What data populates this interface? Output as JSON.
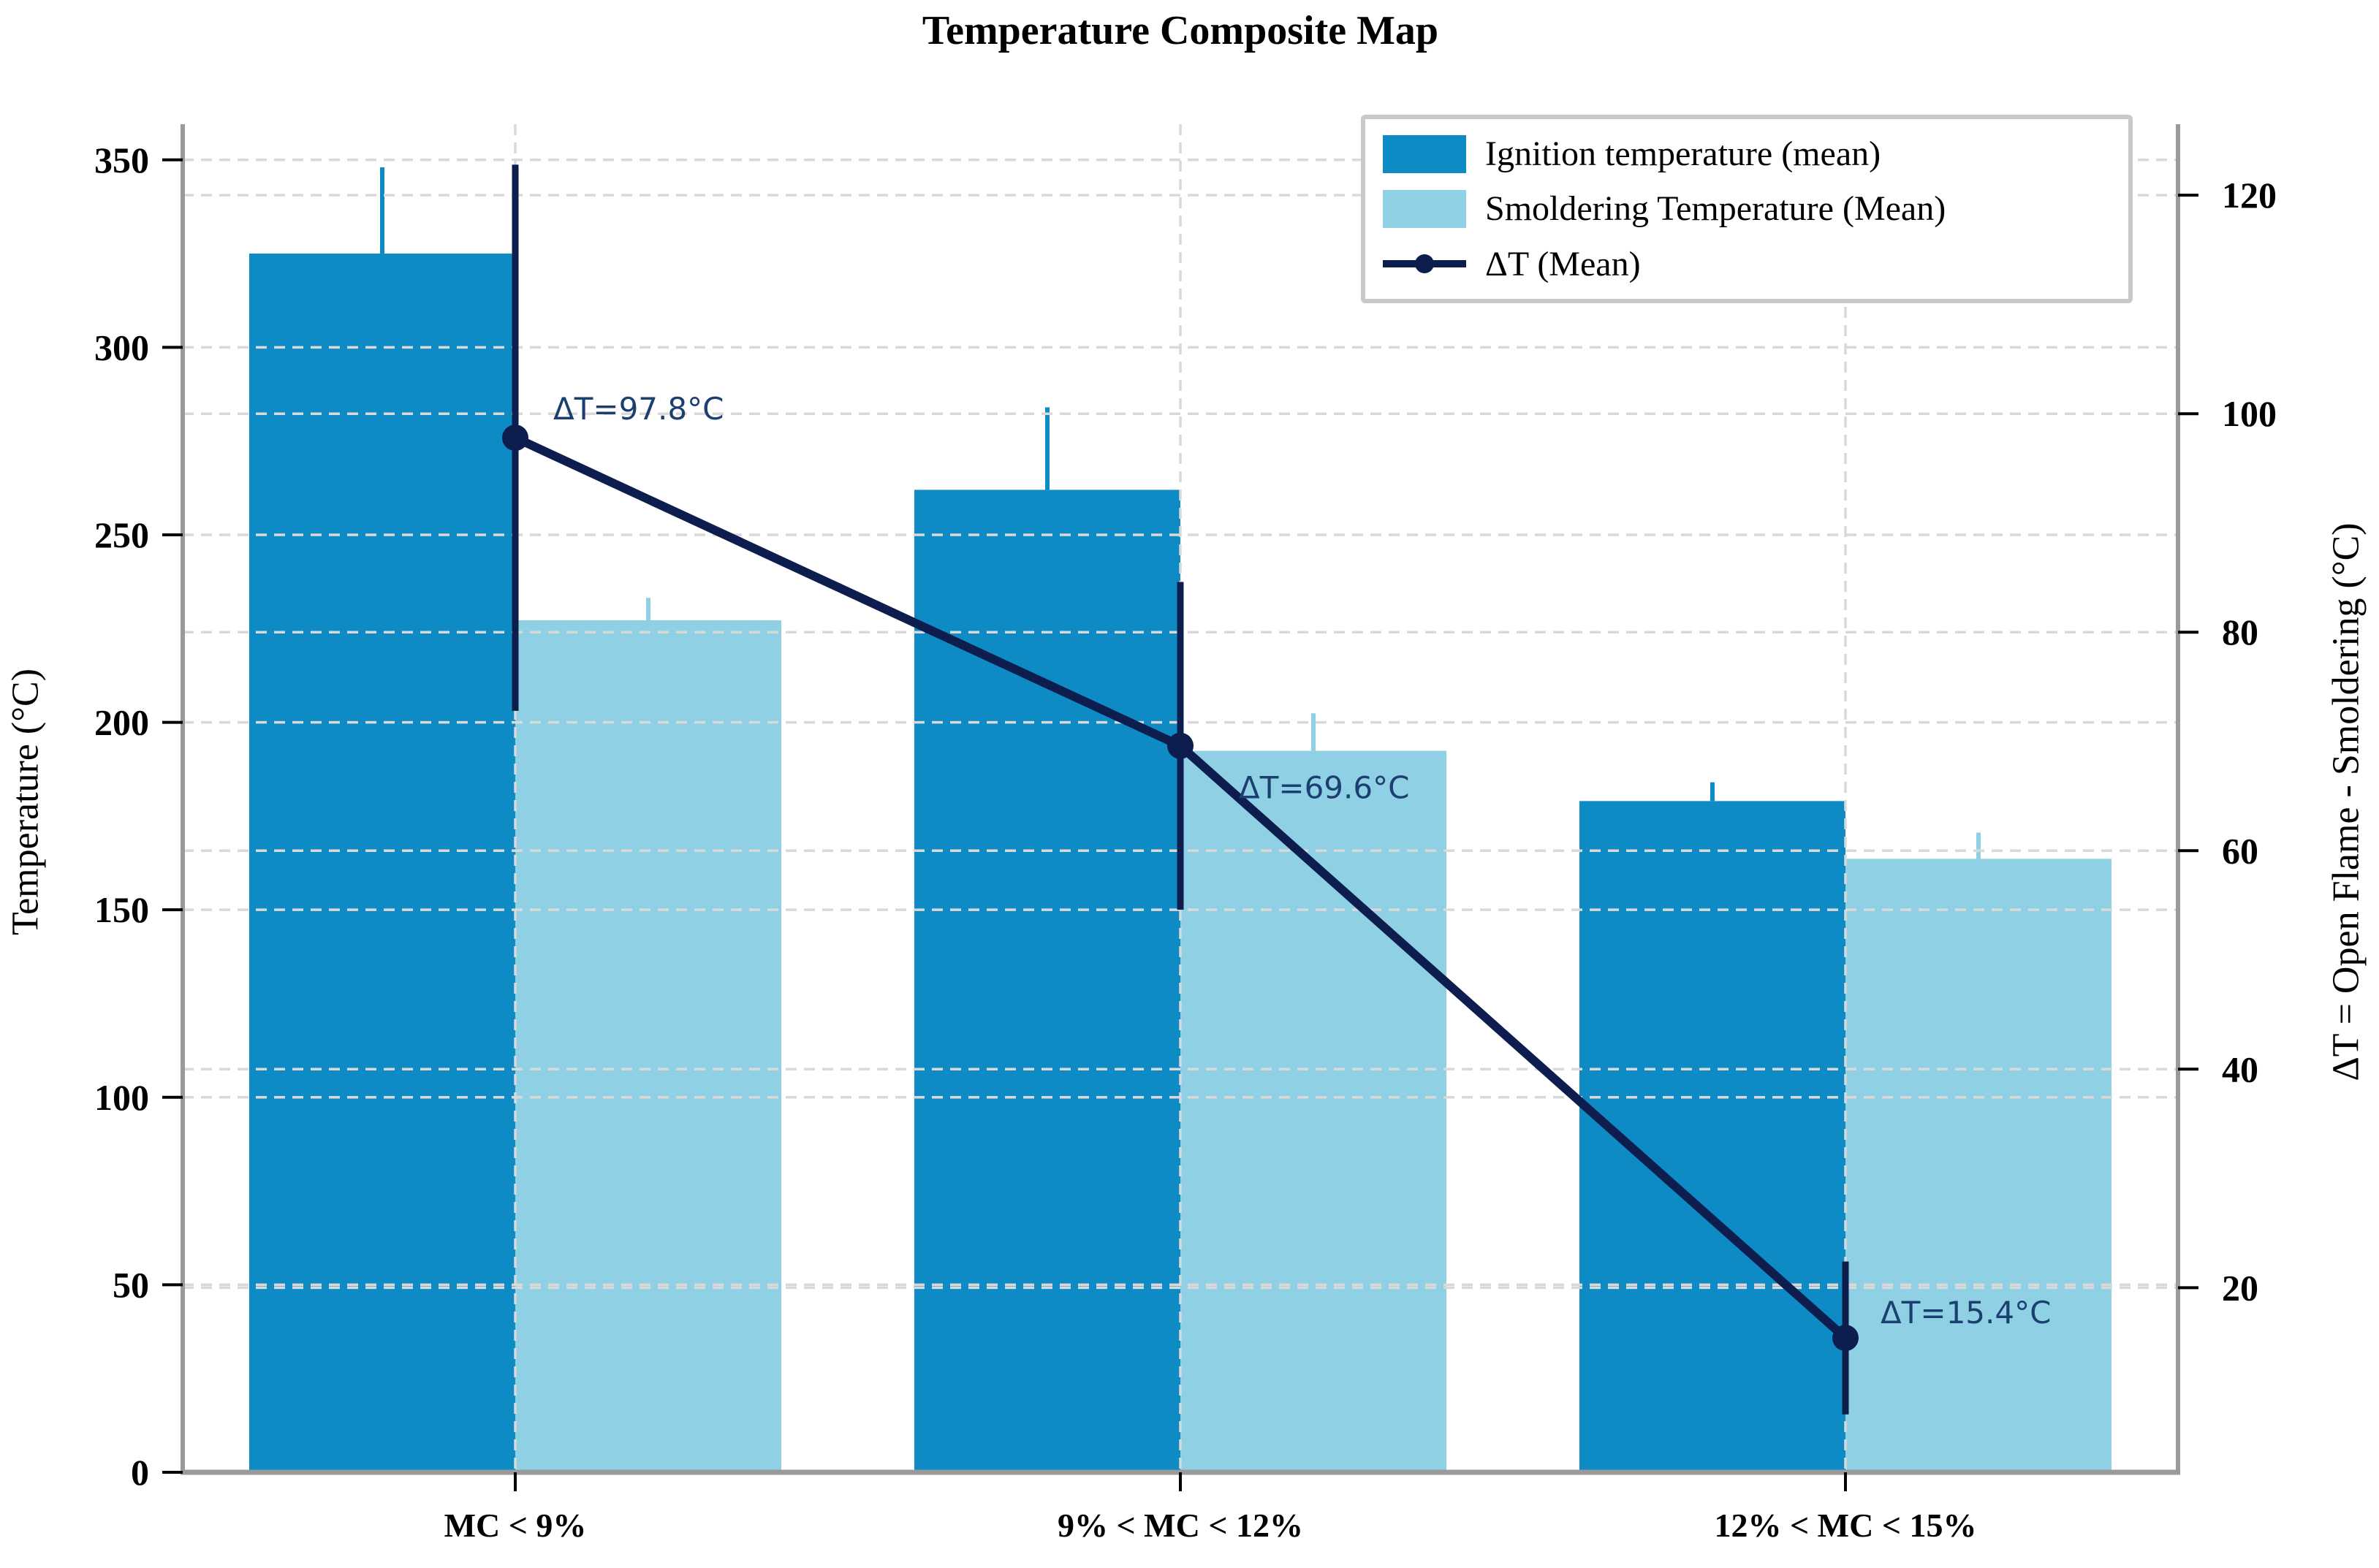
{
  "title": "Temperature Composite Map",
  "colors": {
    "ignition_bar": "#0e8ac4",
    "smoldering_bar": "#8fd0e4",
    "delta_line": "#0d1d4e",
    "annotation_text": "#1c3f72",
    "grid": "#d9d9d9",
    "spine": "#9a9a9a",
    "tick_text": "#000000",
    "legend_border": "#c9c9c9"
  },
  "chart_data": {
    "type": "bar+line composite, dual y-axes",
    "title": "Temperature Composite Map",
    "categories": [
      "MC < 9%",
      "9% < MC < 12%",
      "12% < MC < 15%"
    ],
    "bar_series": [
      {
        "name": "Ignition temperature (mean)",
        "axis": "left",
        "values": [
          325,
          262,
          179
        ],
        "errors_plus": [
          23,
          22,
          5
        ],
        "color": "#0e8ac4"
      },
      {
        "name": "Smoldering Temperature (Mean)",
        "axis": "left",
        "values": [
          227.2,
          192.4,
          163.6
        ],
        "errors_plus": [
          6,
          10,
          7
        ],
        "color": "#8fd0e4"
      }
    ],
    "line_series": {
      "name": "ΔT (Mean)",
      "axis": "right",
      "values": [
        97.8,
        69.6,
        15.4
      ],
      "errors": [
        25,
        15,
        7
      ],
      "color": "#0d1d4e",
      "marker": "circle"
    },
    "annotations": [
      {
        "text": "ΔT=97.8°C"
      },
      {
        "text": "ΔT=69.6°C"
      },
      {
        "text": "ΔT=15.4°C"
      }
    ],
    "left_axis": {
      "label": "Temperature (°C)",
      "ticks": [
        0,
        50,
        100,
        150,
        200,
        250,
        300,
        350
      ],
      "lim": [
        0,
        359.5
      ]
    },
    "right_axis": {
      "label": "ΔT = Open Flame - Smoldering (°C)",
      "ticks": [
        20,
        40,
        60,
        80,
        100,
        120
      ],
      "lim": [
        3.1,
        126.5
      ]
    },
    "grid": {
      "horizontal": "dashed at left-axis and right-axis major ticks",
      "vertical": "dashed at category centers",
      "on": true
    },
    "legend_position": "upper right"
  }
}
